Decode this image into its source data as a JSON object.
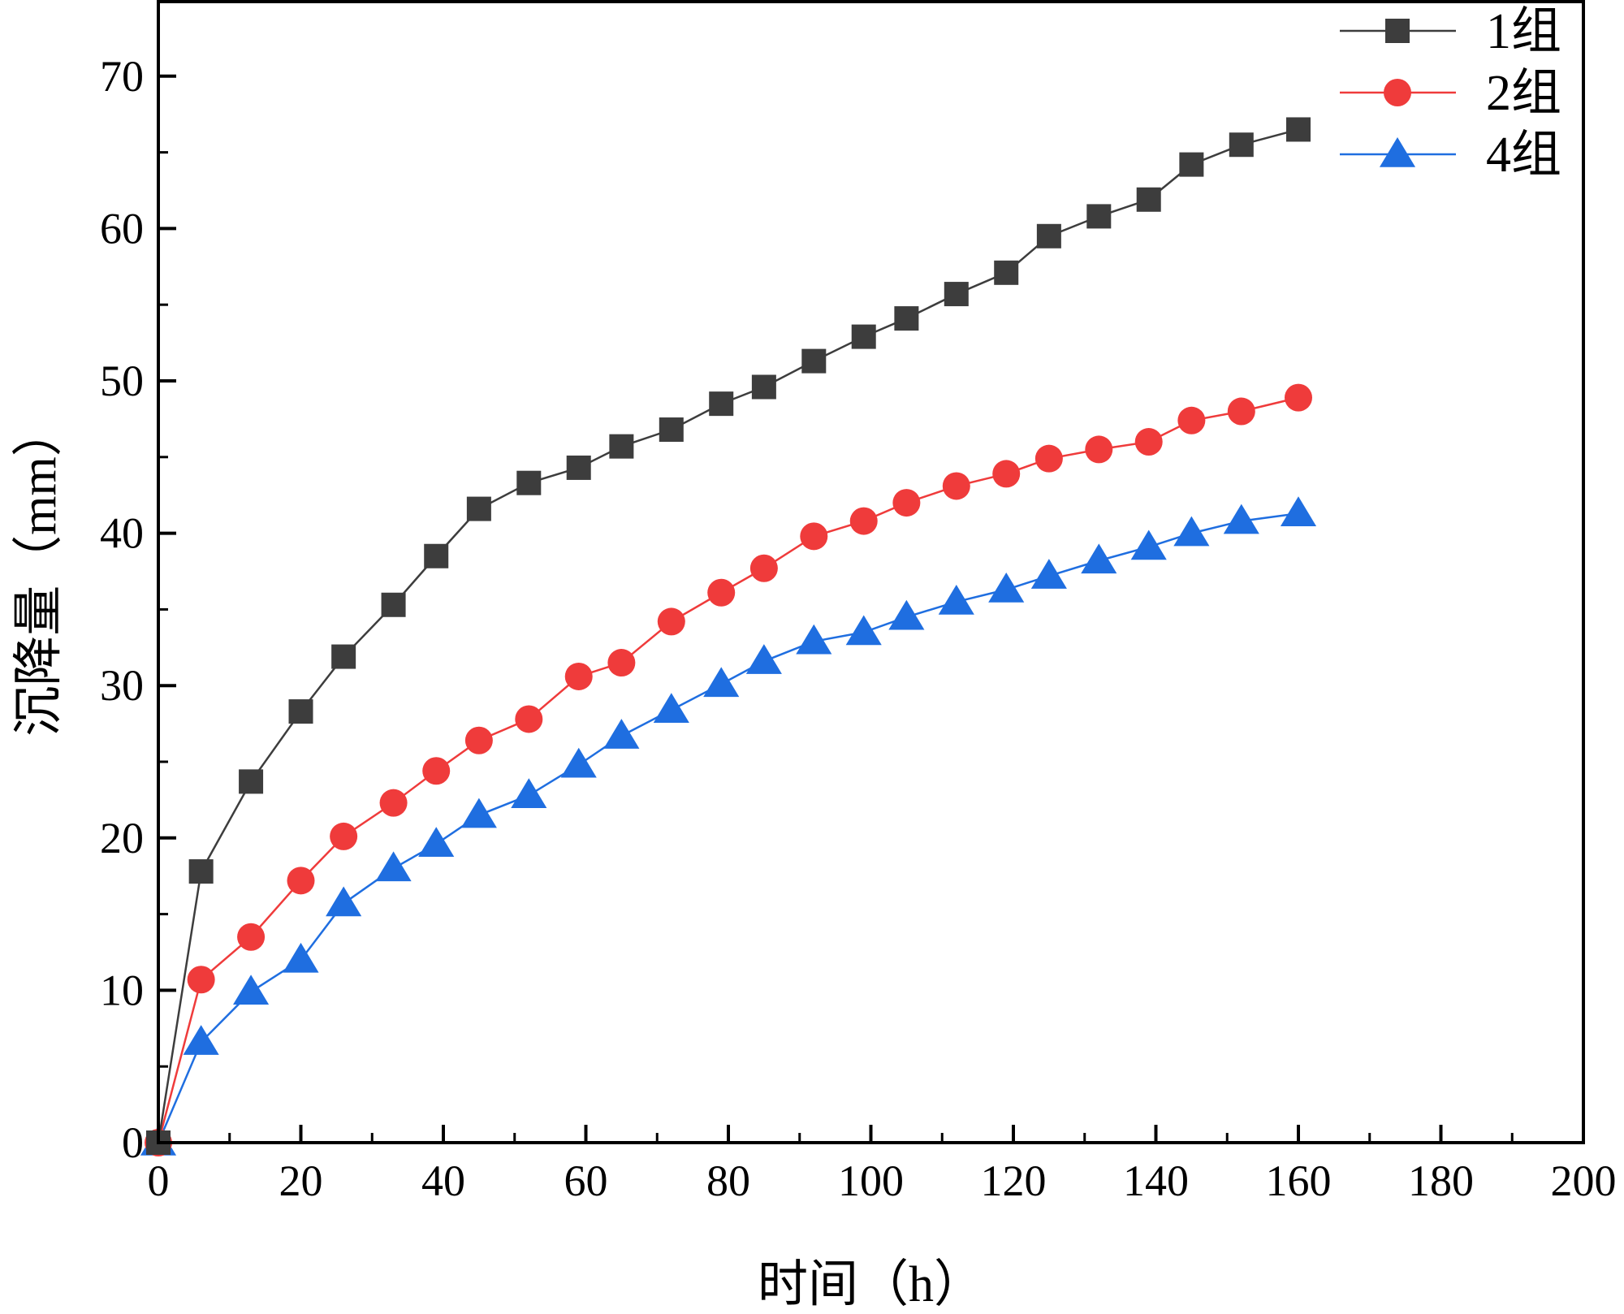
{
  "chart_data": {
    "type": "line",
    "xlabel": "时间（h）",
    "ylabel": "沉降量（mm）",
    "xlim": [
      0,
      200
    ],
    "ylim": [
      0,
      75
    ],
    "xticks": [
      0,
      20,
      40,
      60,
      80,
      100,
      120,
      140,
      160,
      180,
      200
    ],
    "yticks": [
      0,
      10,
      20,
      30,
      40,
      50,
      60,
      70
    ],
    "legend_position": "top-right",
    "grid": false,
    "x": [
      0,
      6,
      13,
      20,
      26,
      33,
      39,
      45,
      52,
      59,
      65,
      72,
      79,
      85,
      92,
      99,
      105,
      112,
      119,
      125,
      132,
      139,
      145,
      152,
      160
    ],
    "series": [
      {
        "name": "1组",
        "color": "#3d3d3d",
        "marker": "square",
        "values": [
          0,
          17.8,
          23.7,
          28.3,
          31.9,
          35.3,
          38.5,
          41.6,
          43.3,
          44.3,
          45.7,
          46.8,
          48.5,
          49.6,
          51.3,
          52.9,
          54.1,
          55.7,
          57.1,
          59.5,
          60.8,
          61.9,
          64.2,
          65.5,
          66.5
        ]
      },
      {
        "name": "2组",
        "color": "#ef3b3b",
        "marker": "circle",
        "values": [
          0,
          10.7,
          13.5,
          17.2,
          20.1,
          22.3,
          24.4,
          26.4,
          27.8,
          30.6,
          31.5,
          34.2,
          36.1,
          37.7,
          39.8,
          40.8,
          42.0,
          43.1,
          43.9,
          44.9,
          45.5,
          46.0,
          47.4,
          48.0,
          48.9
        ]
      },
      {
        "name": "4组",
        "color": "#1f6ee0",
        "marker": "triangle",
        "values": [
          0,
          6.6,
          9.9,
          12.0,
          15.7,
          18.0,
          19.6,
          21.5,
          22.8,
          24.8,
          26.7,
          28.4,
          30.1,
          31.6,
          32.9,
          33.5,
          34.5,
          35.5,
          36.3,
          37.2,
          38.2,
          39.1,
          40.0,
          40.8,
          41.3
        ]
      }
    ]
  }
}
